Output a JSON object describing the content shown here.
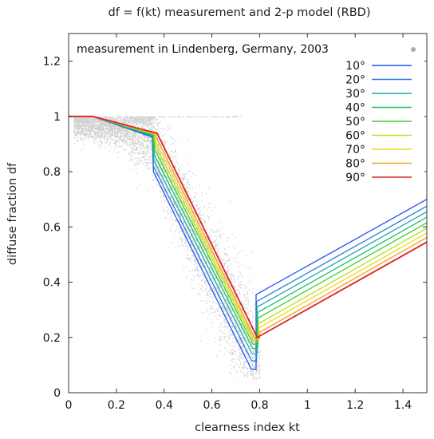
{
  "chart_data": {
    "type": "line",
    "title": "df = f(kt) measurement and 2-p model (RBD)",
    "xlabel": "clearness index kt",
    "ylabel": "diffuse fraction df",
    "xlim": [
      0,
      1.5
    ],
    "ylim": [
      0,
      1.3
    ],
    "x_ticks": [
      "0",
      "0.2",
      "0.4",
      "0.6",
      "0.8",
      "1",
      "1.2",
      "1.4"
    ],
    "y_ticks": [
      "0",
      "0.2",
      "0.4",
      "0.6",
      "0.8",
      "1",
      "1.2"
    ],
    "grid": false,
    "legend_position": "top-right",
    "measurement": {
      "name": "measurement in Lindenberg, Germany, 2003",
      "color": "#aaaaaa",
      "style": "scatter-cloud"
    },
    "series": [
      {
        "name": "10°",
        "color": "#2050ff",
        "x": [
          0,
          0.1,
          0.35,
          0.355,
          0.765,
          0.785,
          0.785,
          1.5
        ],
        "y": [
          1.0,
          1.0,
          0.925,
          0.8,
          0.085,
          0.085,
          0.355,
          0.7
        ]
      },
      {
        "name": "20°",
        "color": "#2a7fd6",
        "x": [
          0,
          0.1,
          0.35,
          0.355,
          0.767,
          0.787,
          0.787,
          1.5
        ],
        "y": [
          1.0,
          1.0,
          0.928,
          0.82,
          0.115,
          0.115,
          0.33,
          0.675
        ]
      },
      {
        "name": "30°",
        "color": "#20a8b0",
        "x": [
          0,
          0.1,
          0.352,
          0.357,
          0.769,
          0.789,
          0.789,
          1.5
        ],
        "y": [
          1.0,
          1.0,
          0.93,
          0.84,
          0.14,
          0.14,
          0.31,
          0.655
        ]
      },
      {
        "name": "40°",
        "color": "#20c060",
        "x": [
          0,
          0.1,
          0.354,
          0.359,
          0.771,
          0.791,
          0.791,
          1.5
        ],
        "y": [
          1.0,
          1.0,
          0.932,
          0.86,
          0.16,
          0.16,
          0.29,
          0.635
        ]
      },
      {
        "name": "50°",
        "color": "#40d030",
        "x": [
          0,
          0.1,
          0.356,
          0.361,
          0.773,
          0.793,
          0.793,
          1.5
        ],
        "y": [
          1.0,
          1.0,
          0.934,
          0.88,
          0.175,
          0.175,
          0.27,
          0.615
        ]
      },
      {
        "name": "60°",
        "color": "#b8e020",
        "x": [
          0,
          0.1,
          0.358,
          0.363,
          0.775,
          0.795,
          0.795,
          1.5
        ],
        "y": [
          1.0,
          1.0,
          0.936,
          0.895,
          0.185,
          0.185,
          0.25,
          0.595
        ]
      },
      {
        "name": "70°",
        "color": "#f0d818",
        "x": [
          0,
          0.1,
          0.36,
          0.365,
          0.777,
          0.797,
          0.797,
          1.5
        ],
        "y": [
          1.0,
          1.0,
          0.938,
          0.91,
          0.192,
          0.192,
          0.235,
          0.578
        ]
      },
      {
        "name": "80°",
        "color": "#f0a020",
        "x": [
          0,
          0.1,
          0.362,
          0.367,
          0.779,
          0.799,
          0.799,
          1.5
        ],
        "y": [
          1.0,
          1.0,
          0.94,
          0.925,
          0.198,
          0.198,
          0.218,
          0.562
        ]
      },
      {
        "name": "90°",
        "color": "#e02020",
        "x": [
          0,
          0.1,
          0.365,
          0.37,
          0.79,
          0.795,
          0.8,
          1.5
        ],
        "y": [
          1.0,
          1.0,
          0.94,
          0.94,
          0.2,
          0.2,
          0.205,
          0.545
        ]
      }
    ]
  }
}
